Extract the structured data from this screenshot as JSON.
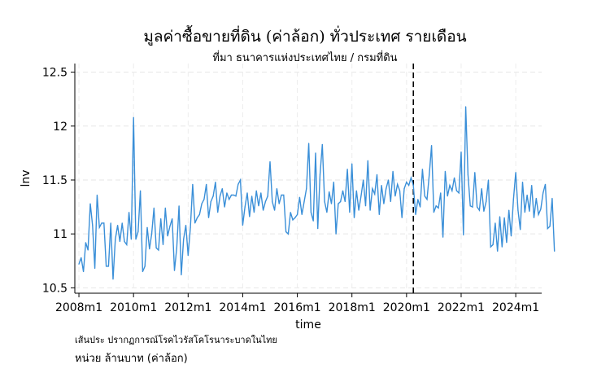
{
  "title": "มูลค่าซื้อขายที่ดิน (ค่าล้อก) ทั่วประเทศ รายเดือน",
  "subtitle": "ที่มา ธนาคารแห่งประเทศไทย / กรมที่ดิน",
  "note": "เส้นประ ปรากฏการณ์โรคไวรัสโคโรนาระบาดในไทย",
  "unit": "หน่วย ล้านบาท (ค่าล้อก)",
  "chart_data": {
    "type": "line",
    "xlabel": "time",
    "ylabel": "lnv",
    "xlim": [
      2007.85,
      2024.95
    ],
    "ylim": [
      10.45,
      12.58
    ],
    "xticks": [
      2008,
      2010,
      2012,
      2014,
      2016,
      2018,
      2020,
      2022,
      2024
    ],
    "xtick_labels": [
      "2008m1",
      "2010m1",
      "2012m1",
      "2014m1",
      "2016m1",
      "2018m1",
      "2020m1",
      "2022m1",
      "2024m1"
    ],
    "yticks": [
      10.5,
      11,
      11.5,
      12,
      12.5
    ],
    "ytick_labels": [
      "10.5",
      "11",
      "11.5",
      "12",
      "12.5"
    ],
    "grid": true,
    "vline": 2020.25,
    "line_color": "#3a8fd8",
    "series": [
      {
        "x_start": "2008m1",
        "frequency": "monthly",
        "values": [
          10.72,
          10.78,
          10.65,
          10.92,
          10.85,
          11.28,
          11.08,
          10.68,
          11.36,
          11.06,
          11.1,
          11.1,
          10.7,
          10.7,
          11.1,
          10.58,
          10.95,
          11.08,
          10.93,
          11.1,
          10.93,
          10.9,
          11.2,
          10.95,
          12.08,
          10.95,
          11.02,
          11.4,
          10.65,
          10.7,
          11.06,
          10.86,
          11.0,
          11.24,
          10.87,
          10.85,
          11.14,
          10.9,
          11.24,
          10.98,
          11.07,
          11.14,
          10.66,
          10.87,
          11.26,
          10.62,
          10.95,
          11.08,
          10.8,
          11.06,
          11.46,
          11.1,
          11.15,
          11.18,
          11.28,
          11.32,
          11.46,
          11.15,
          11.3,
          11.35,
          11.48,
          11.2,
          11.35,
          11.42,
          11.25,
          11.38,
          11.32,
          11.36,
          11.36,
          11.35,
          11.46,
          11.5,
          11.08,
          11.25,
          11.38,
          11.16,
          11.35,
          11.2,
          11.4,
          11.26,
          11.38,
          11.22,
          11.3,
          11.35,
          11.67,
          11.3,
          11.22,
          11.42,
          11.28,
          11.36,
          11.36,
          11.02,
          11.0,
          11.2,
          11.13,
          11.15,
          11.18,
          11.34,
          11.18,
          11.3,
          11.42,
          11.84,
          11.2,
          11.12,
          11.75,
          11.05,
          11.55,
          11.83,
          11.3,
          11.2,
          11.39,
          11.28,
          11.48,
          11.0,
          11.28,
          11.3,
          11.4,
          11.3,
          11.6,
          11.2,
          11.65,
          11.15,
          11.4,
          11.22,
          11.35,
          11.5,
          11.26,
          11.68,
          11.22,
          11.42,
          11.37,
          11.55,
          11.18,
          11.45,
          11.28,
          11.42,
          11.5,
          11.3,
          11.58,
          11.35,
          11.46,
          11.4,
          11.15,
          11.42,
          11.48,
          11.45,
          11.52,
          11.45,
          11.18,
          11.32,
          11.25,
          11.6,
          11.35,
          11.32,
          11.55,
          11.82,
          11.2,
          11.26,
          11.24,
          11.38,
          10.97,
          11.58,
          11.35,
          11.45,
          11.4,
          11.52,
          11.4,
          11.38,
          11.76,
          10.99,
          12.18,
          11.55,
          11.26,
          11.25,
          11.57,
          11.25,
          11.22,
          11.42,
          11.21,
          11.3,
          11.5,
          10.88,
          10.9,
          11.1,
          10.84,
          11.16,
          10.88,
          11.15,
          10.92,
          11.22,
          10.98,
          11.32,
          11.57,
          11.22,
          11.04,
          11.48,
          11.2,
          11.36,
          11.21,
          11.45,
          11.15,
          11.33,
          11.18,
          11.23,
          11.38,
          11.46,
          11.05,
          11.07,
          11.33,
          10.84
        ]
      }
    ]
  }
}
